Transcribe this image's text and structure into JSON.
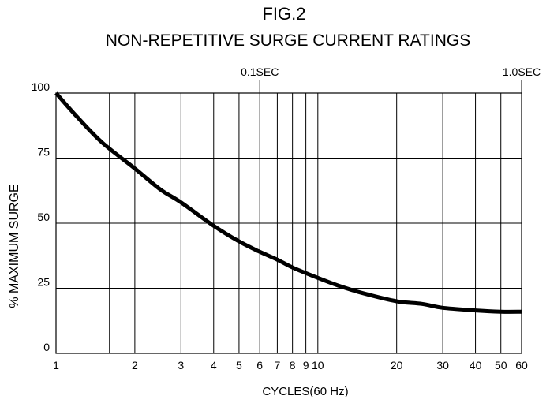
{
  "chart_data": {
    "type": "line",
    "figure_label": "FIG.2",
    "title": "NON-REPETITIVE  SURGE  CURRENT RATINGS",
    "xlabel": "CYCLES(60 Hz)",
    "ylabel": "% MAXIMUM  SURGE",
    "x_scale": "log",
    "xlim": [
      1,
      60
    ],
    "ylim": [
      0,
      100
    ],
    "x_ticks": [
      {
        "value": 1,
        "label": "1"
      },
      {
        "value": 2,
        "label": "2"
      },
      {
        "value": 3,
        "label": "3"
      },
      {
        "value": 4,
        "label": "4"
      },
      {
        "value": 5,
        "label": "5"
      },
      {
        "value": 6,
        "label": "6"
      },
      {
        "value": 7,
        "label": "7"
      },
      {
        "value": 8,
        "label": "8"
      },
      {
        "value": 9,
        "label": "9"
      },
      {
        "value": 10,
        "label": "10"
      },
      {
        "value": 20,
        "label": "20"
      },
      {
        "value": 30,
        "label": "30"
      },
      {
        "value": 40,
        "label": "40"
      },
      {
        "value": 50,
        "label": "50"
      },
      {
        "value": 60,
        "label": "60"
      }
    ],
    "x_gridlines": [
      1,
      1.6,
      2,
      3,
      4,
      5,
      6,
      7,
      8,
      9,
      10,
      20,
      30,
      40,
      50,
      60
    ],
    "y_ticks": [
      {
        "value": 0,
        "label": "0"
      },
      {
        "value": 25,
        "label": "25"
      },
      {
        "value": 50,
        "label": "50"
      },
      {
        "value": 75,
        "label": "75"
      },
      {
        "value": 100,
        "label": "100"
      }
    ],
    "top_annotations": [
      {
        "value": 6,
        "label": "0.1SEC"
      },
      {
        "value": 60,
        "label": "1.0SEC"
      }
    ],
    "grid": true,
    "series": [
      {
        "color": "#000000",
        "x": [
          1,
          1.2,
          1.5,
          2,
          2.5,
          3,
          4,
          5,
          6,
          7,
          8,
          10,
          12,
          15,
          20,
          25,
          30,
          40,
          50,
          60
        ],
        "y": [
          100,
          91,
          81,
          71,
          63,
          58,
          49,
          43,
          39,
          36,
          33,
          29,
          26,
          23,
          20,
          19,
          17.5,
          16.5,
          16,
          16
        ]
      }
    ]
  }
}
